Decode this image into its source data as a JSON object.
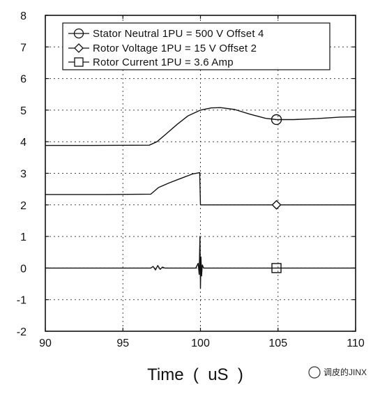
{
  "chart_data": {
    "type": "line",
    "xlabel": "Time  (  uS  )",
    "ylabel": "",
    "xlim": [
      90,
      110
    ],
    "ylim": [
      -2,
      8
    ],
    "xticks": [
      90,
      95,
      100,
      105,
      110
    ],
    "yticks": [
      -2,
      -1,
      0,
      1,
      2,
      3,
      4,
      5,
      6,
      7,
      8
    ],
    "grid": true,
    "grid_style": "dotted",
    "legend_position": "top-right",
    "series": [
      {
        "name": "Stator Neutral 1PU = 500 V Offset 4",
        "marker": "circle",
        "marker_at": [
          104.9,
          4.7
        ],
        "points": [
          [
            90,
            3.88
          ],
          [
            93,
            3.88
          ],
          [
            96.7,
            3.89
          ],
          [
            97.2,
            4.0
          ],
          [
            97.8,
            4.25
          ],
          [
            98.5,
            4.55
          ],
          [
            99.2,
            4.82
          ],
          [
            100,
            5.0
          ],
          [
            100.7,
            5.07
          ],
          [
            101.3,
            5.08
          ],
          [
            102.2,
            5.02
          ],
          [
            103.2,
            4.87
          ],
          [
            104.2,
            4.74
          ],
          [
            104.9,
            4.7
          ],
          [
            106,
            4.7
          ],
          [
            107.5,
            4.73
          ],
          [
            109,
            4.78
          ],
          [
            110,
            4.79
          ]
        ]
      },
      {
        "name": "Rotor Voltage 1PU = 15 V Offset 2",
        "marker": "diamond",
        "marker_at": [
          104.9,
          2.0
        ],
        "points": [
          [
            90,
            2.33
          ],
          [
            94,
            2.33
          ],
          [
            96.8,
            2.34
          ],
          [
            97.3,
            2.55
          ],
          [
            98,
            2.7
          ],
          [
            98.8,
            2.85
          ],
          [
            99.5,
            2.98
          ],
          [
            99.95,
            3.02
          ],
          [
            100.0,
            2.0
          ],
          [
            102,
            2.0
          ],
          [
            105,
            2.0
          ],
          [
            110,
            2.0
          ]
        ]
      },
      {
        "name": "Rotor Current 1PU = 3.6 Amp",
        "marker": "square",
        "marker_at": [
          104.9,
          0.0
        ],
        "points": [
          [
            90,
            0
          ],
          [
            96.8,
            0
          ],
          [
            96.95,
            0.05
          ],
          [
            97.1,
            -0.06
          ],
          [
            97.25,
            0.08
          ],
          [
            97.4,
            -0.04
          ],
          [
            97.55,
            0.03
          ],
          [
            97.7,
            0
          ],
          [
            99.7,
            0
          ],
          [
            99.85,
            0.15
          ],
          [
            99.92,
            -0.2
          ],
          [
            99.97,
            1.0
          ],
          [
            100.0,
            -0.65
          ],
          [
            100.03,
            0.35
          ],
          [
            100.07,
            -0.25
          ],
          [
            100.12,
            0.1
          ],
          [
            100.2,
            0
          ],
          [
            110,
            0
          ]
        ]
      }
    ]
  },
  "watermark": {
    "text": "调皮的JINX"
  },
  "colors": {
    "line": "#111111",
    "grid": "#444444",
    "background": "#ffffff"
  }
}
